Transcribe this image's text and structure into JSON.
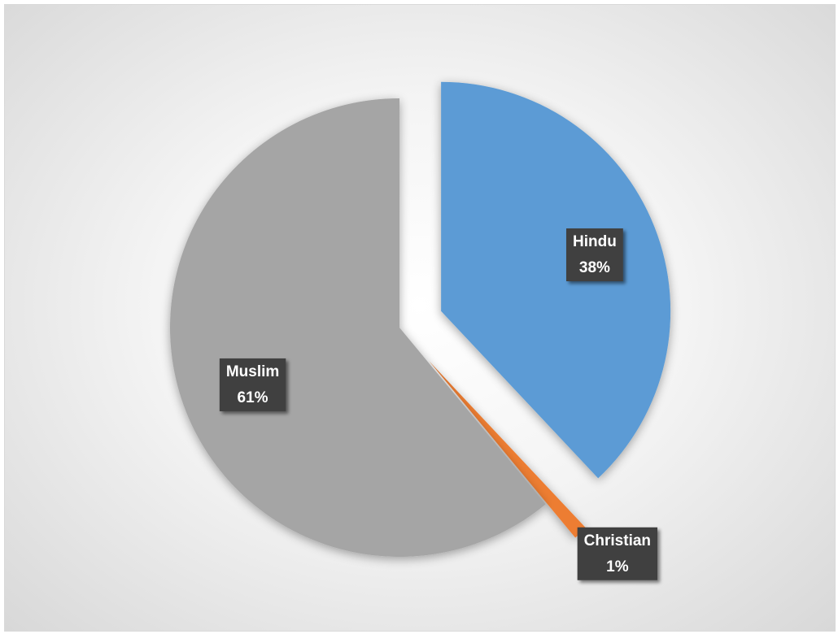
{
  "chart_data": {
    "type": "pie",
    "title": "",
    "start_angle_deg": 0,
    "direction": "clockwise",
    "slices": [
      {
        "label": "Hindu",
        "value": 38,
        "percent_label": "38%",
        "color": "#5b9bd5",
        "exploded": true
      },
      {
        "label": "Christian",
        "value": 1,
        "percent_label": "1%",
        "color": "#ed7d31",
        "exploded": true
      },
      {
        "label": "Muslim",
        "value": 61,
        "percent_label": "61%",
        "color": "#a5a5a5",
        "exploded": false
      }
    ],
    "legend": "none",
    "data_labels": "category name and percentage"
  }
}
